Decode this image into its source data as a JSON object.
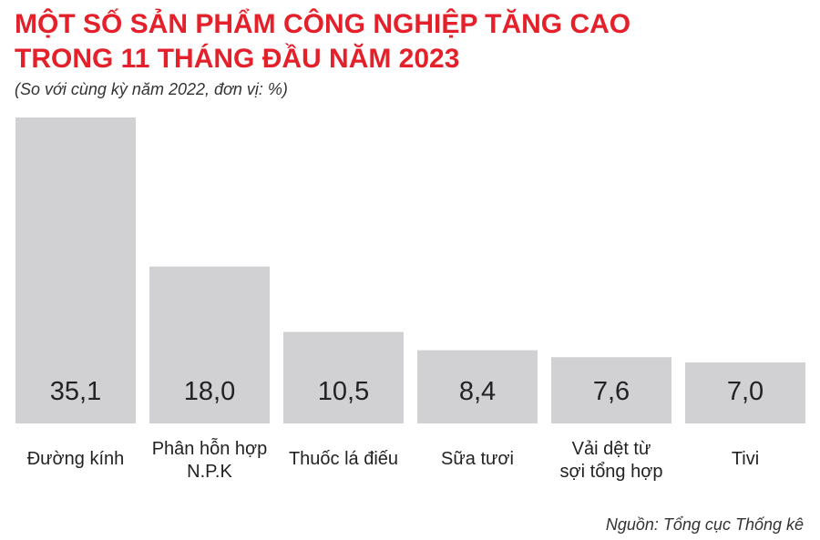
{
  "header": {
    "title_line1": "MỘT SỐ SẢN PHẨM CÔNG NGHIỆP TĂNG CAO",
    "title_line2": "TRONG 11 THÁNG ĐẦU NĂM 2023",
    "subtitle": "(So với cùng kỳ năm 2022, đơn vị: %)"
  },
  "source": "Nguồn: Tổng cục Thống kê",
  "colors": {
    "title": "#e4202b",
    "bar": "#d1d1d3",
    "text": "#222222"
  },
  "chart_data": {
    "type": "bar",
    "title": "MỘT SỐ SẢN PHẨM CÔNG NGHIỆP TĂNG CAO TRONG 11 THÁNG ĐẦU NĂM 2023",
    "subtitle": "(So với cùng kỳ năm 2022, đơn vị: %)",
    "categories": [
      [
        "Đường kính"
      ],
      [
        "Phân hỗn hợp",
        "N.P.K"
      ],
      [
        "Thuốc lá điếu"
      ],
      [
        "Sữa tươi"
      ],
      [
        "Vải dệt từ",
        "sợi tổng hợp"
      ],
      [
        "Tivi"
      ]
    ],
    "values": [
      35.1,
      18.0,
      10.5,
      8.4,
      7.6,
      7.0
    ],
    "value_labels": [
      "35,1",
      "18,0",
      "10,5",
      "8,4",
      "7,6",
      "7,0"
    ],
    "ylim": [
      0,
      35.1
    ],
    "grid": false,
    "legend": "none"
  }
}
